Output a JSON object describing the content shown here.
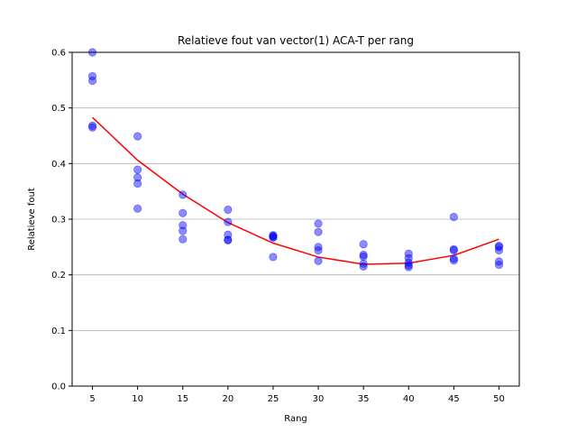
{
  "chart_data": {
    "type": "scatter",
    "title": "Relatieve fout van vector(1) ACA-T per rang",
    "xlabel": "Rang",
    "ylabel": "Relatieve fout",
    "xlim": [
      2.75,
      52.25
    ],
    "ylim": [
      0.0,
      0.6
    ],
    "xticks": [
      5,
      10,
      15,
      20,
      25,
      30,
      35,
      40,
      45,
      50
    ],
    "yticks": [
      0.0,
      0.1,
      0.2,
      0.3,
      0.4,
      0.5,
      0.6
    ],
    "ytick_labels": [
      "0.0",
      "0.1",
      "0.2",
      "0.3",
      "0.4",
      "0.5",
      "0.6"
    ],
    "grid": "horizontal",
    "point_color": "#0000ff",
    "line_color": "#ff0000",
    "series": [
      {
        "type": "scatter",
        "x": [
          5,
          5,
          5,
          5,
          5,
          10,
          10,
          10,
          10,
          10,
          15,
          15,
          15,
          15,
          15,
          20,
          20,
          20,
          20,
          20,
          25,
          25,
          25,
          25,
          25,
          30,
          30,
          30,
          30,
          30,
          35,
          35,
          35,
          35,
          35,
          40,
          40,
          40,
          40,
          40,
          45,
          45,
          45,
          45,
          45,
          50,
          50,
          50,
          50,
          50
        ],
        "y": [
          0.6,
          0.557,
          0.549,
          0.468,
          0.465,
          0.449,
          0.389,
          0.375,
          0.364,
          0.319,
          0.344,
          0.311,
          0.289,
          0.279,
          0.264,
          0.317,
          0.295,
          0.272,
          0.263,
          0.262,
          0.271,
          0.27,
          0.268,
          0.267,
          0.232,
          0.292,
          0.277,
          0.25,
          0.244,
          0.225,
          0.255,
          0.236,
          0.233,
          0.22,
          0.215,
          0.238,
          0.23,
          0.222,
          0.217,
          0.214,
          0.304,
          0.246,
          0.244,
          0.229,
          0.226,
          0.252,
          0.25,
          0.244,
          0.224,
          0.218
        ]
      },
      {
        "type": "line",
        "x": [
          5,
          10,
          15,
          20,
          25,
          30,
          35,
          40,
          45,
          50
        ],
        "y": [
          0.483,
          0.406,
          0.345,
          0.294,
          0.257,
          0.232,
          0.219,
          0.221,
          0.235,
          0.264
        ]
      }
    ]
  }
}
